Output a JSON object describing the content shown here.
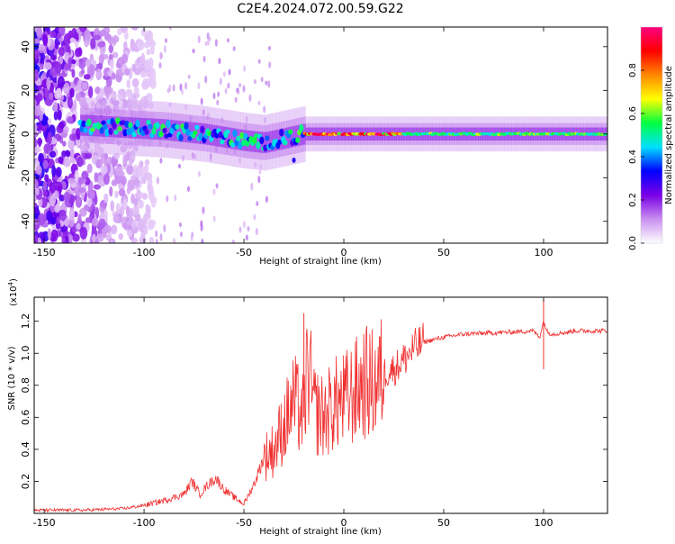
{
  "figure": {
    "title": "C2E4.2024.072.00.59.G22"
  },
  "chart_data": [
    {
      "type": "heatmap",
      "title": "C2E4.2024.072.00.59.G22",
      "xlabel": "Height of straight line (km)",
      "ylabel": "Frequency (Hz)",
      "xlim": [
        -155,
        132
      ],
      "ylim": [
        -50,
        49
      ],
      "xticks": [
        -150,
        -100,
        -50,
        0,
        50,
        100
      ],
      "yticks": [
        -40,
        -20,
        0,
        20,
        40
      ],
      "colorbar": {
        "label": "Normalized spectral amplitude",
        "range": [
          0,
          1
        ],
        "ticks": [
          "0.0",
          "0.2",
          "0.4",
          "0.6",
          "0.8"
        ],
        "tick_values": [
          0.0,
          0.2,
          0.4,
          0.6,
          0.8
        ],
        "colors": [
          "#ffffff",
          "#c98ff0",
          "#7a00e6",
          "#0000ff",
          "#00e0ff",
          "#00ff40",
          "#ffff00",
          "#ff8800",
          "#ff0000",
          "#ff0080"
        ]
      },
      "ridge": {
        "x": [
          -130,
          -110,
          -90,
          -70,
          -50,
          -40,
          -30,
          -25,
          -20,
          0,
          20,
          50,
          100,
          132
        ],
        "y": [
          4,
          3,
          2,
          0,
          -3,
          -4,
          -2,
          -1,
          0,
          0,
          0,
          0,
          0,
          0
        ]
      },
      "noise_region_x": [
        -155,
        -95
      ]
    },
    {
      "type": "line",
      "title": "",
      "xlabel": "Height of straight line (km)",
      "ylabel": "SNR (10 * v/v)",
      "yscale_label": "(x10",
      "yscale_exp": "4",
      "yscale_close": ")",
      "xlim": [
        -155,
        132
      ],
      "ylim": [
        0,
        1.35
      ],
      "xticks": [
        -150,
        -100,
        -50,
        0,
        50,
        100
      ],
      "yticks": [
        0.2,
        0.4,
        0.6,
        0.8,
        1.0,
        1.2
      ],
      "ytick_labels": [
        "0.2",
        "0.4",
        "0.6",
        "0.8",
        "1.0",
        "1.2"
      ],
      "color": "#f03030",
      "series": [
        {
          "x": [
            -155,
            -130,
            -110,
            -100,
            -90,
            -80,
            -76,
            -72,
            -68,
            -64,
            -60,
            -55,
            -50,
            -45,
            -40,
            -35,
            -30,
            -25,
            -20,
            -18,
            -15,
            -10,
            -5,
            0,
            5,
            10,
            15,
            20,
            25,
            30,
            35,
            40,
            50,
            60,
            80,
            95,
            98,
            100,
            102,
            105,
            110,
            112,
            115,
            120,
            132
          ],
          "y": [
            0.02,
            0.02,
            0.03,
            0.05,
            0.08,
            0.12,
            0.2,
            0.12,
            0.18,
            0.22,
            0.15,
            0.1,
            0.06,
            0.18,
            0.35,
            0.4,
            0.55,
            0.7,
            0.6,
            0.95,
            0.65,
            0.6,
            0.68,
            0.7,
            0.75,
            0.82,
            0.8,
            0.88,
            0.9,
            0.96,
            1.03,
            1.07,
            1.1,
            1.12,
            1.13,
            1.14,
            1.1,
            1.2,
            1.13,
            1.12,
            1.13,
            1.13,
            1.14,
            1.14,
            1.14
          ]
        }
      ],
      "annotations": [
        {
          "x": -20,
          "y": 1.25
        },
        {
          "x": 100,
          "y": 1.34
        },
        {
          "x": 100,
          "y": 0.9
        }
      ]
    }
  ]
}
